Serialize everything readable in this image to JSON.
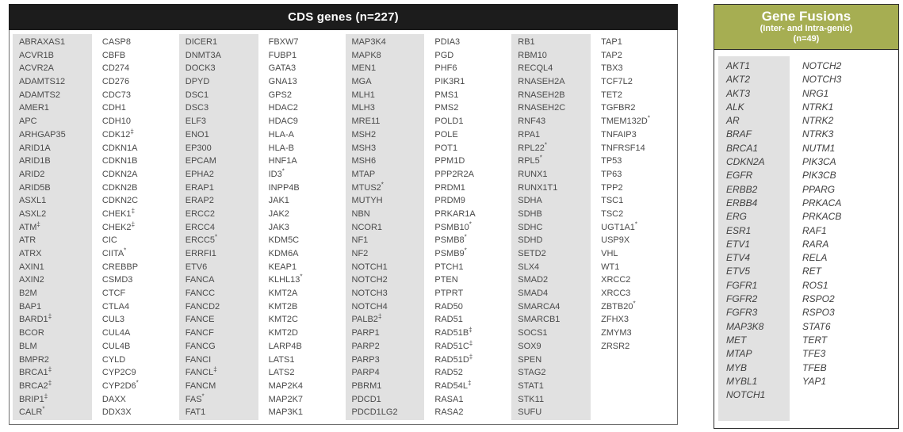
{
  "colors": {
    "cds_header_bg": "#1c1c1c",
    "fusion_header_bg": "#a6ae52",
    "stripe_gray": "#e1e1e1",
    "gene_text": "#4a4a4a"
  },
  "cds_table": {
    "title": "CDS genes (n=227)",
    "columns": [
      [
        "ABRAXAS1",
        "ACVR1B",
        "ACVR2A",
        "ADAMTS12",
        "ADAMTS2",
        "AMER1",
        "APC",
        "ARHGAP35",
        "ARID1A",
        "ARID1B",
        "ARID2",
        "ARID5B",
        "ASXL1",
        "ASXL2",
        "ATM‡",
        "ATR",
        "ATRX",
        "AXIN1",
        "AXIN2",
        "B2M",
        "BAP1",
        "BARD1‡",
        "BCOR",
        "BLM",
        "BMPR2",
        "BRCA1‡",
        "BRCA2‡",
        "BRIP1‡",
        "CALR*"
      ],
      [
        "CASP8",
        "CBFB",
        "CD274",
        "CD276",
        "CDC73",
        "CDH1",
        "CDH10",
        "CDK12‡",
        "CDKN1A",
        "CDKN1B",
        "CDKN2A",
        "CDKN2B",
        "CDKN2C",
        "CHEK1‡",
        "CHEK2‡",
        "CIC",
        "CIITA*",
        "CREBBP",
        "CSMD3",
        "CTCF",
        "CTLA4",
        "CUL3",
        "CUL4A",
        "CUL4B",
        "CYLD",
        "CYP2C9",
        "CYP2D6*",
        "DAXX",
        "DDX3X"
      ],
      [
        "DICER1",
        "DNMT3A",
        "DOCK3",
        "DPYD",
        "DSC1",
        "DSC3",
        "ELF3",
        "ENO1",
        "EP300",
        "EPCAM",
        "EPHA2",
        "ERAP1",
        "ERAP2",
        "ERCC2",
        "ERCC4",
        "ERCC5*",
        "ERRFI1",
        "ETV6",
        "FANCA",
        "FANCC",
        "FANCD2",
        "FANCE",
        "FANCF",
        "FANCG",
        "FANCI",
        "FANCL‡",
        "FANCM",
        "FAS*",
        "FAT1"
      ],
      [
        "FBXW7",
        "FUBP1",
        "GATA3",
        "GNA13",
        "GPS2",
        "HDAC2",
        "HDAC9",
        "HLA-A",
        "HLA-B",
        "HNF1A",
        "ID3*",
        "INPP4B",
        "JAK1",
        "JAK2",
        "JAK3",
        "KDM5C",
        "KDM6A",
        "KEAP1",
        "KLHL13*",
        "KMT2A",
        "KMT2B",
        "KMT2C",
        "KMT2D",
        "LARP4B",
        "LATS1",
        "LATS2",
        "MAP2K4",
        "MAP2K7",
        "MAP3K1"
      ],
      [
        "MAP3K4",
        "MAPK8",
        "MEN1",
        "MGA",
        "MLH1",
        "MLH3",
        "MRE11",
        "MSH2",
        "MSH3",
        "MSH6",
        "MTAP",
        "MTUS2*",
        "MUTYH",
        "NBN",
        "NCOR1",
        "NF1",
        "NF2",
        "NOTCH1",
        "NOTCH2",
        "NOTCH3",
        "NOTCH4",
        "PALB2‡",
        "PARP1",
        "PARP2",
        "PARP3",
        "PARP4",
        "PBRM1",
        "PDCD1",
        "PDCD1LG2"
      ],
      [
        "PDIA3",
        "PGD",
        "PHF6",
        "PIK3R1",
        "PMS1",
        "PMS2",
        "POLD1",
        "POLE",
        "POT1",
        "PPM1D",
        "PPP2R2A",
        "PRDM1",
        "PRDM9",
        "PRKAR1A",
        "PSMB10*",
        "PSMB8*",
        "PSMB9*",
        "PTCH1",
        "PTEN",
        "PTPRT",
        "RAD50",
        "RAD51",
        "RAD51B‡",
        "RAD51C‡",
        "RAD51D‡",
        "RAD52",
        "RAD54L‡",
        "RASA1",
        "RASA2"
      ],
      [
        "RB1",
        "RBM10",
        "RECQL4",
        "RNASEH2A",
        "RNASEH2B",
        "RNASEH2C",
        "RNF43",
        "RPA1",
        "RPL22*",
        "RPL5*",
        "RUNX1",
        "RUNX1T1",
        "SDHA",
        "SDHB",
        "SDHC",
        "SDHD",
        "SETD2",
        "SLX4",
        "SMAD2",
        "SMAD4",
        "SMARCA4",
        "SMARCB1",
        "SOCS1",
        "SOX9",
        "SPEN",
        "STAG2",
        "STAT1",
        "STK11",
        "SUFU"
      ],
      [
        "TAP1",
        "TAP2",
        "TBX3",
        "TCF7L2",
        "TET2",
        "TGFBR2",
        "TMEM132D*",
        "TNFAIP3",
        "TNFRSF14",
        "TP53",
        "TP63",
        "TPP2",
        "TSC1",
        "TSC2",
        "UGT1A1*",
        "USP9X",
        "VHL",
        "WT1",
        "XRCC2",
        "XRCC3",
        "ZBTB20*",
        "ZFHX3",
        "ZMYM3",
        "ZRSR2"
      ]
    ]
  },
  "fusions_table": {
    "title": "Gene Fusions",
    "subtitle": "(Inter- and Intra-genic)",
    "count_label": "(n=49)",
    "columns": [
      [
        "AKT1",
        "AKT2",
        "AKT3",
        "ALK",
        "AR",
        "BRAF",
        "BRCA1",
        "CDKN2A",
        "EGFR",
        "ERBB2",
        "ERBB4",
        "ERG",
        "ESR1",
        "ETV1",
        "ETV4",
        "ETV5",
        "FGFR1",
        "FGFR2",
        "FGFR3",
        "MAP3K8",
        "MET",
        "MTAP",
        "MYB",
        "MYBL1",
        "NOTCH1"
      ],
      [
        "NOTCH2",
        "NOTCH3",
        "NRG1",
        "NTRK1",
        "NTRK2",
        "NTRK3",
        "NUTM1",
        "PIK3CA",
        "PIK3CB",
        "PPARG",
        "PRKACA",
        "PRKACB",
        "RAF1",
        "RARA",
        "RELA",
        "RET",
        "ROS1",
        "RSPO2",
        "RSPO3",
        "STAT6",
        "TERT",
        "TFE3",
        "TFEB",
        "YAP1"
      ]
    ]
  }
}
